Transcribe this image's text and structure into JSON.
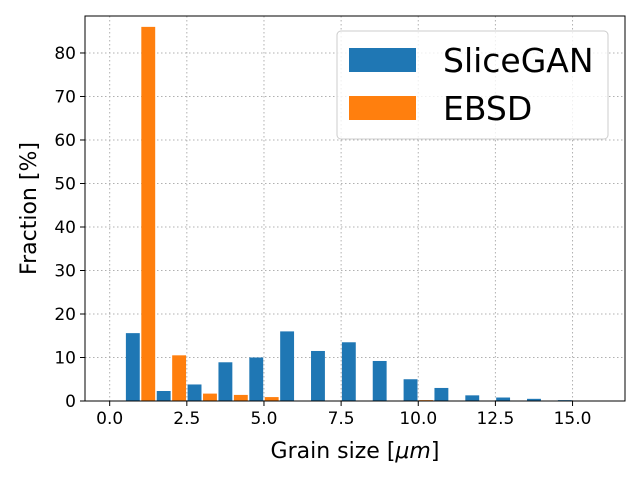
{
  "chart_data": {
    "type": "bar",
    "xlabel_pre": "Grain size [",
    "xlabel_unit": "μm",
    "xlabel_post": "]",
    "ylabel": "Fraction [%]",
    "xlim": [
      -0.8,
      16.7
    ],
    "ylim": [
      0,
      88.5
    ],
    "grid": true,
    "legend_position": "top-right",
    "x_ticks": [
      0.0,
      2.5,
      5.0,
      7.5,
      10.0,
      12.5,
      15.0
    ],
    "x_tick_labels": [
      "0.0",
      "2.5",
      "5.0",
      "7.5",
      "10.0",
      "12.5",
      "15.0"
    ],
    "y_ticks": [
      0,
      10,
      20,
      30,
      40,
      50,
      60,
      70,
      80
    ],
    "y_tick_labels": [
      "0",
      "10",
      "20",
      "30",
      "40",
      "50",
      "60",
      "70",
      "80"
    ],
    "series": [
      {
        "name": "SliceGAN",
        "color": "#1f77b4",
        "x": [
          0.75,
          1.75,
          2.75,
          3.75,
          4.75,
          5.75,
          6.75,
          7.75,
          8.75,
          9.75,
          10.75,
          11.75,
          12.75,
          13.75,
          14.75
        ],
        "values": [
          15.6,
          2.3,
          3.8,
          8.9,
          10.0,
          16.0,
          11.5,
          13.5,
          9.2,
          5.0,
          3.0,
          1.3,
          0.8,
          0.5,
          0.2
        ]
      },
      {
        "name": "EBSD",
        "color": "#ff7f0e",
        "x": [
          1.25,
          2.25,
          3.25,
          4.25,
          5.25,
          6.25,
          7.25,
          8.25,
          9.25,
          10.25,
          11.25,
          12.25,
          13.25,
          14.25,
          15.25
        ],
        "values": [
          86.0,
          10.5,
          1.7,
          1.4,
          0.9,
          0,
          0,
          0,
          0,
          0.2,
          0,
          0,
          0,
          0,
          0
        ]
      }
    ],
    "bar_width": 0.45
  }
}
